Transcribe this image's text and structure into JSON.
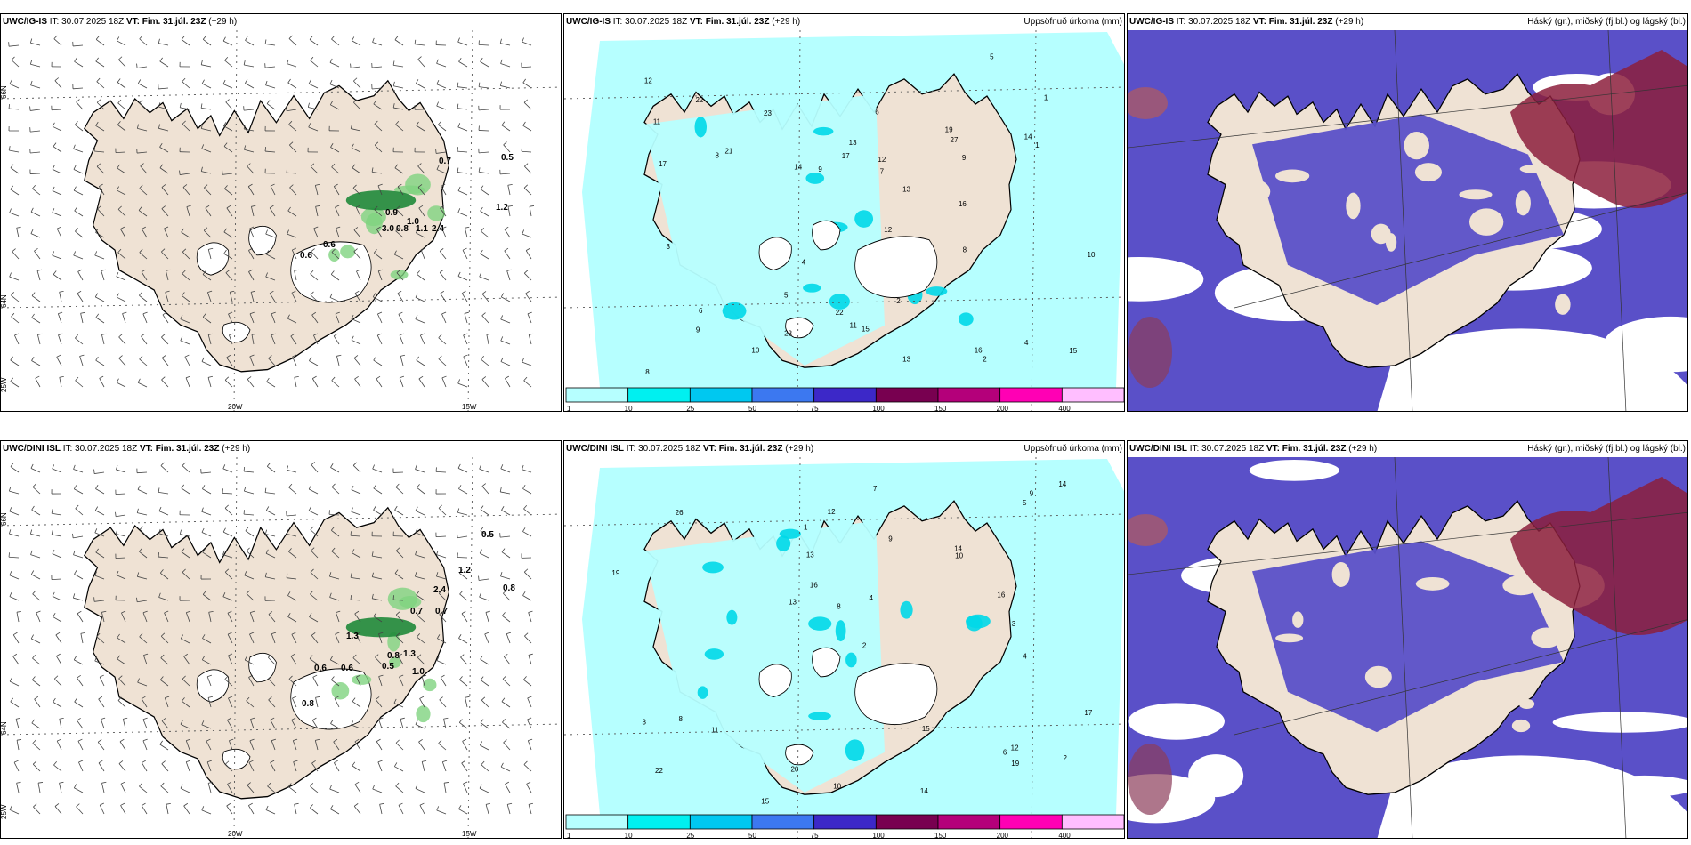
{
  "panels": {
    "p1": {
      "model": "UWC/IG-IS",
      "it": "IT: 30.07.2025 18Z",
      "vt_label": "VT:",
      "vt": "Fim. 31.júl. 23Z",
      "lead": "(+29 h)",
      "right_title": ""
    },
    "p2": {
      "model": "UWC/IG-IS",
      "it": "IT: 30.07.2025 18Z",
      "vt_label": "VT:",
      "vt": "Fim. 31.júl. 23Z",
      "lead": "(+29 h)",
      "right_title": "Uppsöfnuð úrkoma (mm)"
    },
    "p3": {
      "model": "UWC/IG-IS",
      "it": "IT: 30.07.2025 18Z",
      "vt_label": "VT:",
      "vt": "Fim. 31.júl. 23Z",
      "lead": "(+29 h)",
      "right_title": "Háský (gr.), miðský (fj.bl.) og lágský (bl.)"
    },
    "p4": {
      "model": "UWC/DINI ISL",
      "it": "IT: 30.07.2025 18Z",
      "vt_label": "VT:",
      "vt": "Fim. 31.júl. 23Z",
      "lead": "(+29 h)",
      "right_title": ""
    },
    "p5": {
      "model": "UWC/DINI ISL",
      "it": "IT: 30.07.2025 18Z",
      "vt_label": "VT:",
      "vt": "Fim. 31.júl. 23Z",
      "lead": "(+29 h)",
      "right_title": "Uppsöfnuð úrkoma (mm)"
    },
    "p6": {
      "model": "UWC/DINI ISL",
      "it": "IT: 30.07.2025 18Z",
      "vt_label": "VT:",
      "vt": "Fim. 31.júl. 23Z",
      "lead": "(+29 h)",
      "right_title": "Háský (gr.), miðský (fj.bl.) og lágský (bl.)"
    }
  },
  "grid_labels": {
    "lat66": "66N",
    "lat64": "64N",
    "lon25": "25W",
    "lon20": "20W",
    "lon15": "15W"
  },
  "colorbar": {
    "labels": [
      "1",
      "10",
      "25",
      "50",
      "75",
      "100",
      "150",
      "200",
      "400"
    ],
    "colors": [
      "#b6ffff",
      "#00f0f0",
      "#00c8f0",
      "#3c78f0",
      "#3c28c8",
      "#780050",
      "#b4007a",
      "#ff00b4",
      "#ffbeff"
    ]
  },
  "wind_values": {
    "p1": [
      "0.7",
      "0.5",
      "0.9",
      "3.0",
      "0.8",
      "1.0",
      "1.1",
      "2.4",
      "1.2",
      "0.6",
      "0.6"
    ],
    "p4": [
      "0.5",
      "1.2",
      "2.4",
      "0.8",
      "0.7",
      "0.7",
      "1.3",
      "0.8",
      "1.3",
      "0.5",
      "1.0",
      "0.6",
      "0.6",
      "0.8"
    ]
  },
  "precip_values": {
    "p2": [
      "1",
      "2",
      "4",
      "4",
      "6",
      "8",
      "12",
      "13",
      "11",
      "9",
      "17",
      "22",
      "8",
      "5",
      "23",
      "23",
      "16",
      "14",
      "13",
      "15",
      "10",
      "15",
      "11",
      "17",
      "12",
      "16",
      "6",
      "22",
      "14",
      "9",
      "13",
      "8",
      "7",
      "19",
      "27",
      "1",
      "2",
      "3",
      "5",
      "9",
      "10",
      "12",
      "21"
    ],
    "p5": [
      "12",
      "3",
      "6",
      "9",
      "8",
      "13",
      "15",
      "17",
      "16",
      "20",
      "14",
      "12",
      "22",
      "15",
      "14",
      "26",
      "10",
      "10",
      "19",
      "14",
      "19",
      "2",
      "1",
      "3",
      "4",
      "5",
      "7",
      "11",
      "16",
      "8",
      "9",
      "13",
      "2",
      "4"
    ]
  },
  "colors": {
    "land": "#efe2d4",
    "sea_precip": "#b6ffff",
    "green": "#1f8a3a",
    "cloud_low": "#5a50c8",
    "cloud_high": "#8c1e3c"
  }
}
